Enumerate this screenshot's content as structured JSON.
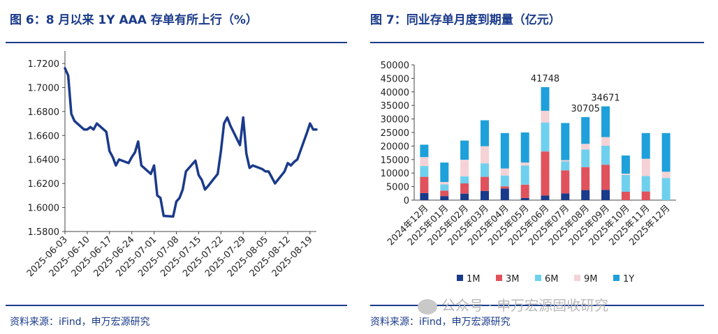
{
  "left": {
    "title": "图 6：8 月以来 1Y AAA 存单有所上行（%）",
    "source": "资料来源：iFind，申万宏源研究",
    "chart_data": {
      "type": "line",
      "yticks": [
        "1.5800",
        "1.6000",
        "1.6200",
        "1.6400",
        "1.6600",
        "1.6800",
        "1.7000",
        "1.7200"
      ],
      "ylim": [
        1.58,
        1.72
      ],
      "xticks": [
        "2025-06-03",
        "2025-06-10",
        "2025-06-17",
        "2025-06-24",
        "2025-07-01",
        "2025-07-08",
        "2025-07-15",
        "2025-07-22",
        "2025-07-29",
        "2025-08-05",
        "2025-08-12",
        "2025-08-19"
      ],
      "x_start": "2025-06-03",
      "x_end": "2025-08-21",
      "series": [
        {
          "color": "#1a3a8a",
          "points": [
            [
              "2025-06-03",
              1.716
            ],
            [
              "2025-06-04",
              1.71
            ],
            [
              "2025-06-05",
              1.678
            ],
            [
              "2025-06-06",
              1.672
            ],
            [
              "2025-06-09",
              1.665
            ],
            [
              "2025-06-10",
              1.665
            ],
            [
              "2025-06-11",
              1.667
            ],
            [
              "2025-06-12",
              1.665
            ],
            [
              "2025-06-13",
              1.67
            ],
            [
              "2025-06-16",
              1.663
            ],
            [
              "2025-06-17",
              1.647
            ],
            [
              "2025-06-18",
              1.642
            ],
            [
              "2025-06-19",
              1.635
            ],
            [
              "2025-06-20",
              1.64
            ],
            [
              "2025-06-23",
              1.637
            ],
            [
              "2025-06-24",
              1.642
            ],
            [
              "2025-06-25",
              1.646
            ],
            [
              "2025-06-26",
              1.655
            ],
            [
              "2025-06-27",
              1.635
            ],
            [
              "2025-06-30",
              1.628
            ],
            [
              "2025-07-01",
              1.635
            ],
            [
              "2025-07-02",
              1.61
            ],
            [
              "2025-07-03",
              1.608
            ],
            [
              "2025-07-04",
              1.593
            ],
            [
              "2025-07-07",
              1.5925
            ],
            [
              "2025-07-08",
              1.605
            ],
            [
              "2025-07-09",
              1.608
            ],
            [
              "2025-07-10",
              1.615
            ],
            [
              "2025-07-11",
              1.63
            ],
            [
              "2025-07-14",
              1.639
            ],
            [
              "2025-07-15",
              1.627
            ],
            [
              "2025-07-16",
              1.623
            ],
            [
              "2025-07-17",
              1.615
            ],
            [
              "2025-07-18",
              1.618
            ],
            [
              "2025-07-21",
              1.628
            ],
            [
              "2025-07-22",
              1.647
            ],
            [
              "2025-07-23",
              1.67
            ],
            [
              "2025-07-24",
              1.675
            ],
            [
              "2025-07-25",
              1.668
            ],
            [
              "2025-07-28",
              1.652
            ],
            [
              "2025-07-29",
              1.675
            ],
            [
              "2025-07-30",
              1.645
            ],
            [
              "2025-07-31",
              1.633
            ],
            [
              "2025-08-01",
              1.635
            ],
            [
              "2025-08-04",
              1.632
            ],
            [
              "2025-08-05",
              1.63
            ],
            [
              "2025-08-06",
              1.63
            ],
            [
              "2025-08-07",
              1.625
            ],
            [
              "2025-08-08",
              1.62
            ],
            [
              "2025-08-11",
              1.63
            ],
            [
              "2025-08-12",
              1.637
            ],
            [
              "2025-08-13",
              1.635
            ],
            [
              "2025-08-14",
              1.638
            ],
            [
              "2025-08-15",
              1.64
            ],
            [
              "2025-08-18",
              1.662
            ],
            [
              "2025-08-19",
              1.67
            ],
            [
              "2025-08-20",
              1.665
            ],
            [
              "2025-08-21",
              1.665
            ]
          ]
        }
      ]
    }
  },
  "right": {
    "title": "图 7：同业存单月度到期量（亿元）",
    "source": "资料来源：iFind，申万宏源研究",
    "chart_data": {
      "type": "bar",
      "stacked": true,
      "categories": [
        "2024年12月",
        "2025年01月",
        "2025年02月",
        "2025年03月",
        "2025年04月",
        "2025年05月",
        "2025年06月",
        "2025年07月",
        "2025年08月",
        "2025年09月",
        "2025年10月",
        "2025年11月",
        "2025年12月"
      ],
      "yticks": [
        "0",
        "5000",
        "10000",
        "15000",
        "20000",
        "25000",
        "30000",
        "35000",
        "40000",
        "45000",
        "50000"
      ],
      "ylim": [
        0,
        50000
      ],
      "series": [
        {
          "name": "1M",
          "color": "#1a3a8a",
          "values": [
            2600,
            1500,
            2400,
            3400,
            4300,
            800,
            1700,
            2500,
            3700,
            3800,
            0,
            0,
            0
          ]
        },
        {
          "name": "3M",
          "color": "#e0525c",
          "values": [
            6000,
            2000,
            3800,
            5200,
            800,
            4900,
            16300,
            8500,
            8500,
            9300,
            3100,
            3200,
            0
          ]
        },
        {
          "name": "6M",
          "color": "#6fd0ee",
          "values": [
            4000,
            2300,
            2600,
            5000,
            4000,
            7100,
            10700,
            3300,
            6500,
            7000,
            6200,
            5700,
            8200
          ]
        },
        {
          "name": "9M",
          "color": "#f5d2d6",
          "values": [
            3300,
            900,
            6100,
            6300,
            2600,
            1100,
            4300,
            500,
            2100,
            3200,
            500,
            6400,
            2300
          ]
        },
        {
          "name": "1Y",
          "color": "#1ea0da",
          "values": [
            4600,
            7200,
            7100,
            9600,
            13100,
            11100,
            8748,
            13700,
            9905,
            11371,
            6700,
            9500,
            14300
          ]
        }
      ],
      "annotations": [
        {
          "category": "2025年06月",
          "label": "41748",
          "value": 41748
        },
        {
          "category": "2025年08月",
          "label": "30705",
          "value": 30705
        },
        {
          "category": "2025年09月",
          "label": "34671",
          "value": 34671
        }
      ]
    }
  },
  "watermark": "公众号 · 申万宏源固收研究"
}
